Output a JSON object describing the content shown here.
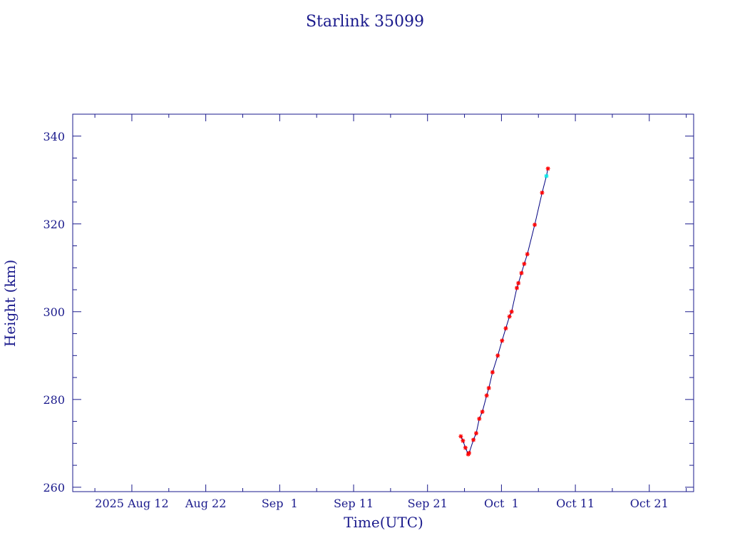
{
  "chart_data": {
    "type": "scatter",
    "title": "Starlink 35099",
    "xlabel": "Time(UTC)",
    "ylabel": "Height (km)",
    "x_range": [
      "2025-08-04",
      "2025-10-27"
    ],
    "ylim": [
      259,
      345
    ],
    "x_ticks": [
      {
        "date": "2025-08-12",
        "label": "2025 Aug 12"
      },
      {
        "date": "2025-08-22",
        "label": "Aug 22"
      },
      {
        "date": "2025-09-01",
        "label": "Sep  1"
      },
      {
        "date": "2025-09-11",
        "label": "Sep 11"
      },
      {
        "date": "2025-09-21",
        "label": "Sep 21"
      },
      {
        "date": "2025-10-01",
        "label": "Oct  1"
      },
      {
        "date": "2025-10-11",
        "label": "Oct 11"
      },
      {
        "date": "2025-10-21",
        "label": "Oct 21"
      }
    ],
    "y_ticks": [
      260,
      280,
      300,
      320,
      340
    ],
    "grid": false,
    "marker_color": "#ff0000",
    "line_color": "#000080",
    "highlight_color": "#00e5e5",
    "series": [
      {
        "points": [
          {
            "x": "2025-09-25 12:00",
            "y": 271.6
          },
          {
            "x": "2025-09-25 19:00",
            "y": 270.6
          },
          {
            "x": "2025-09-26 03:00",
            "y": 269.0
          },
          {
            "x": "2025-09-26 12:00",
            "y": 267.5
          },
          {
            "x": "2025-09-26 15:00",
            "y": 267.8
          },
          {
            "x": "2025-09-27 05:00",
            "y": 270.8
          },
          {
            "x": "2025-09-27 14:00",
            "y": 272.3
          },
          {
            "x": "2025-09-28 00:00",
            "y": 275.6
          },
          {
            "x": "2025-09-28 10:00",
            "y": 277.2
          },
          {
            "x": "2025-09-29 00:00",
            "y": 280.9
          },
          {
            "x": "2025-09-29 07:00",
            "y": 282.6
          },
          {
            "x": "2025-09-29 19:00",
            "y": 286.2
          },
          {
            "x": "2025-09-30 12:00",
            "y": 290.0
          },
          {
            "x": "2025-10-01 02:00",
            "y": 293.4
          },
          {
            "x": "2025-10-01 14:00",
            "y": 296.2
          },
          {
            "x": "2025-10-02 02:00",
            "y": 298.9
          },
          {
            "x": "2025-10-02 09:00",
            "y": 300.0
          },
          {
            "x": "2025-10-03 02:00",
            "y": 305.4
          },
          {
            "x": "2025-10-03 07:00",
            "y": 306.5
          },
          {
            "x": "2025-10-03 17:00",
            "y": 308.8
          },
          {
            "x": "2025-10-04 02:00",
            "y": 310.9
          },
          {
            "x": "2025-10-04 12:00",
            "y": 313.1
          },
          {
            "x": "2025-10-05 12:00",
            "y": 319.8
          },
          {
            "x": "2025-10-06 12:00",
            "y": 327.1
          },
          {
            "x": "2025-10-07 02:00",
            "y": 330.9,
            "highlight": true
          },
          {
            "x": "2025-10-07 07:00",
            "y": 332.6
          }
        ]
      }
    ]
  }
}
